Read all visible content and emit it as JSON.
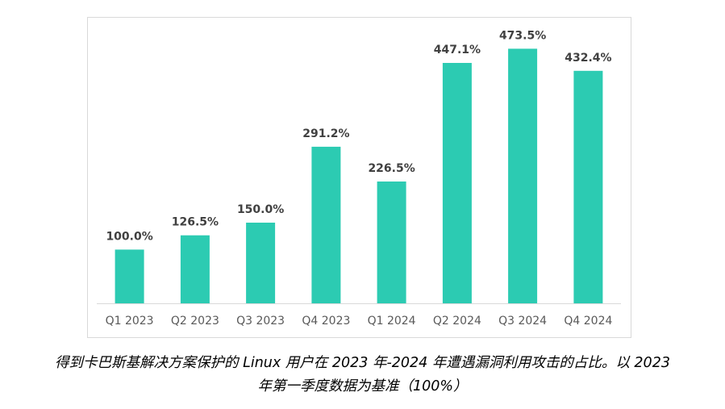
{
  "chart_data": {
    "type": "bar",
    "categories": [
      "Q1 2023",
      "Q2 2023",
      "Q3 2023",
      "Q4 2023",
      "Q1 2024",
      "Q2 2024",
      "Q3 2024",
      "Q4 2024"
    ],
    "values": [
      100.0,
      126.5,
      150.0,
      291.2,
      226.5,
      447.1,
      473.5,
      432.4
    ],
    "data_labels": [
      "100.0%",
      "126.5%",
      "150.0%",
      "291.2%",
      "226.5%",
      "447.1%",
      "473.5%",
      "432.4%"
    ],
    "title": "",
    "xlabel": "",
    "ylabel": "",
    "ylim": [
      0,
      500
    ],
    "grid": false,
    "legend": "none",
    "bar_color": "#2ccbb2",
    "label_color": "#404040",
    "tick_color": "#595959",
    "axis_color": "#d9d9d9"
  },
  "caption": {
    "line1": "得到卡巴斯基解决方案保护的 Linux 用户在 2023 年-2024 年遭遇漏洞利用攻击的占比。以 2023",
    "line2": "年第一季度数据为基准（100%）"
  }
}
